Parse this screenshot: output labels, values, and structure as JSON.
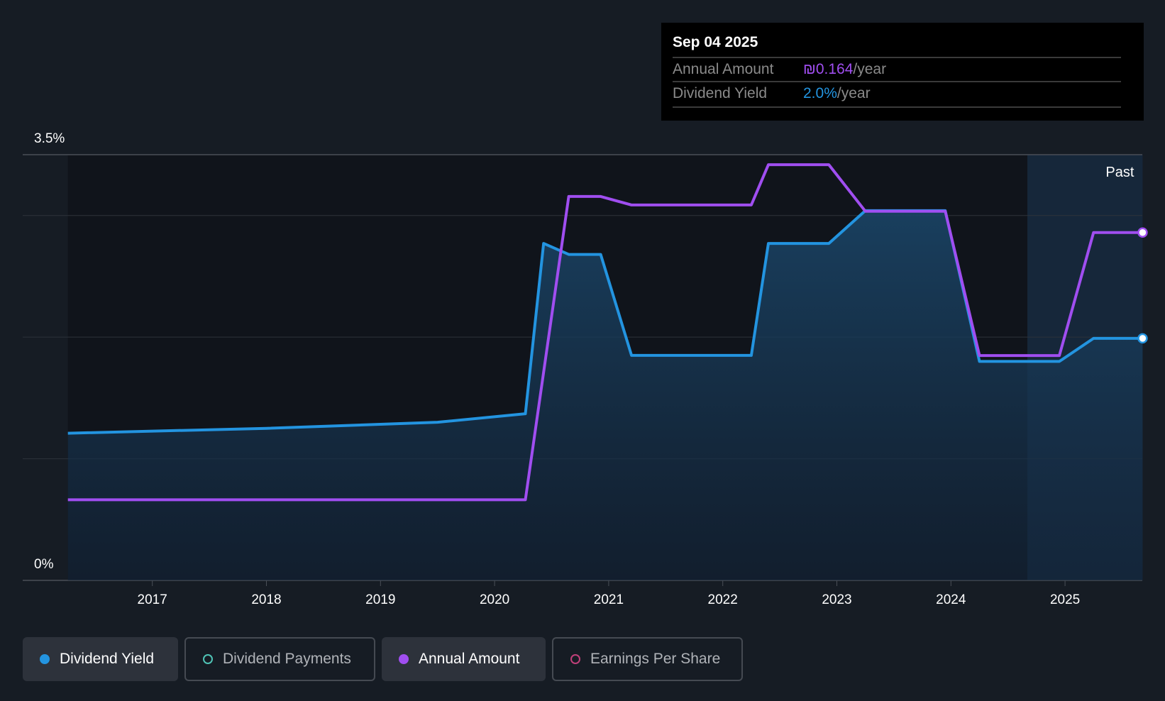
{
  "tooltip": {
    "date": "Sep 04 2025",
    "rows": [
      {
        "label": "Annual Amount",
        "value": "₪0.164",
        "unit": "/year",
        "color": "#a04ef0"
      },
      {
        "label": "Dividend Yield",
        "value": "2.0%",
        "unit": "/year",
        "color": "#2394e0"
      }
    ]
  },
  "legend": [
    {
      "label": "Dividend Yield",
      "color": "#2394e0",
      "active": true
    },
    {
      "label": "Dividend Payments",
      "color": "#4fc3b5",
      "active": false
    },
    {
      "label": "Annual Amount",
      "color": "#a04ef0",
      "active": true
    },
    {
      "label": "Earnings Per Share",
      "color": "#c0407a",
      "active": false
    }
  ],
  "chart_data": {
    "type": "line",
    "past_label": "Past",
    "past_start": 2024.67,
    "xlim": [
      2016.26,
      2025.68
    ],
    "x_ticks": [
      "2017",
      "2018",
      "2019",
      "2020",
      "2021",
      "2022",
      "2023",
      "2024",
      "2025"
    ],
    "y_ticks": [
      "3.5%",
      "0%"
    ],
    "ylim": [
      0,
      3.5
    ],
    "gridlines": [
      1,
      2,
      3,
      3.5
    ],
    "amount_axis_max": 0.2007,
    "series": [
      {
        "name": "Dividend Yield",
        "unit": "%",
        "color": "#2394e0",
        "x": [
          2016.26,
          2018.0,
          2019.5,
          2020.27,
          2020.43,
          2020.65,
          2020.93,
          2021.2,
          2022.25,
          2022.4,
          2022.93,
          2023.25,
          2023.95,
          2024.25,
          2024.95,
          2025.25,
          2025.68
        ],
        "values": [
          1.21,
          1.25,
          1.3,
          1.37,
          2.77,
          2.68,
          2.68,
          1.85,
          1.85,
          2.77,
          2.77,
          3.04,
          3.04,
          1.8,
          1.8,
          1.99,
          1.99
        ]
      },
      {
        "name": "Annual Amount",
        "unit": "ILS",
        "color": "#a04ef0",
        "x": [
          2016.26,
          2020.27,
          2020.65,
          2020.93,
          2021.2,
          2022.25,
          2022.4,
          2022.93,
          2023.25,
          2023.95,
          2024.25,
          2024.95,
          2025.25,
          2025.68
        ],
        "values": [
          0.038,
          0.038,
          0.181,
          0.181,
          0.177,
          0.177,
          0.196,
          0.196,
          0.174,
          0.174,
          0.106,
          0.106,
          0.164,
          0.164
        ]
      }
    ]
  }
}
